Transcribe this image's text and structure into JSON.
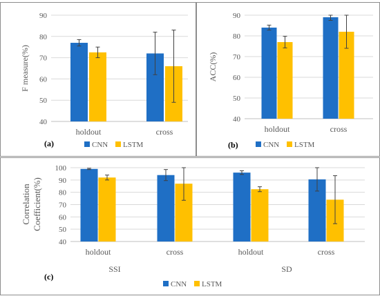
{
  "colors": {
    "cnn": "#1F6FC5",
    "lstm": "#FFC000",
    "grid": "#D9D9D9",
    "frame": "#8C8C8C",
    "error": "#404040"
  },
  "chart_data": [
    {
      "type": "bar",
      "panel_label": "(a)",
      "ylabel": "F measure(%)",
      "ylim": [
        40,
        90
      ],
      "yticks": [
        40,
        50,
        60,
        70,
        80,
        90
      ],
      "categories": [
        "holdout",
        "cross"
      ],
      "series": [
        {
          "name": "CNN",
          "values": [
            77,
            72
          ],
          "errors": [
            1.5,
            10
          ]
        },
        {
          "name": "LSTM",
          "values": [
            72.5,
            66
          ],
          "errors": [
            2.5,
            17
          ]
        }
      ],
      "legend_position": "bottom"
    },
    {
      "type": "bar",
      "panel_label": "(b)",
      "ylabel": "ACC(%)",
      "ylim": [
        40,
        90
      ],
      "yticks": [
        40,
        50,
        60,
        70,
        80,
        90
      ],
      "categories": [
        "holdout",
        "cross"
      ],
      "series": [
        {
          "name": "CNN",
          "values": [
            84,
            89
          ],
          "errors": [
            1.2,
            1.5
          ]
        },
        {
          "name": "LSTM",
          "values": [
            77,
            82
          ],
          "errors": [
            2.8,
            8
          ]
        }
      ],
      "legend_position": "bottom"
    },
    {
      "type": "bar",
      "panel_label": "(c)",
      "ylabel": "Correlation Coefficient(%)",
      "ylim": [
        40,
        100
      ],
      "yticks": [
        40,
        50,
        60,
        70,
        80,
        90,
        100
      ],
      "categories": [
        "holdout",
        "cross",
        "holdout",
        "cross"
      ],
      "groups": [
        "SSI",
        "SD"
      ],
      "series": [
        {
          "name": "CNN",
          "values": [
            99,
            94,
            96,
            90.5
          ],
          "errors": [
            0.5,
            4.5,
            1.5,
            9.5
          ]
        },
        {
          "name": "LSTM",
          "values": [
            92,
            87,
            82.5,
            74
          ],
          "errors": [
            2,
            13.5,
            2,
            19.5
          ]
        }
      ],
      "legend_position": "bottom"
    }
  ]
}
